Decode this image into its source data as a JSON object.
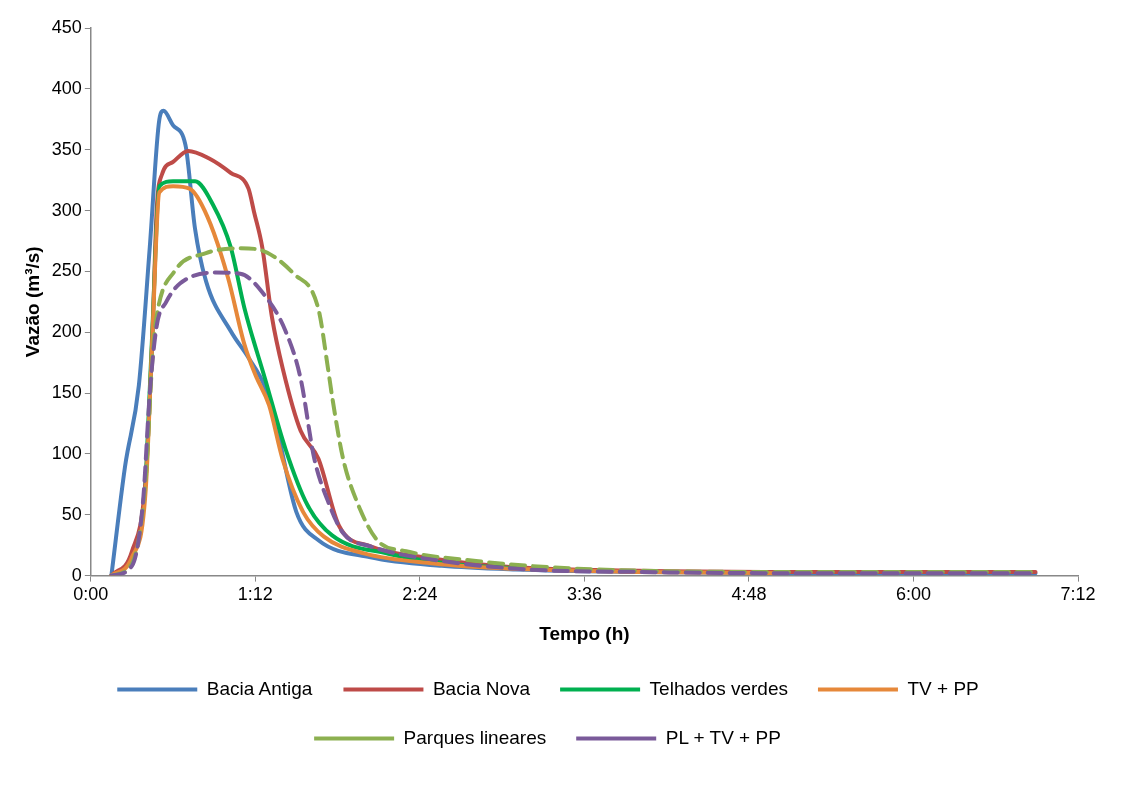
{
  "chart_data": {
    "type": "line",
    "xlabel": "Tempo (h)",
    "ylabel": "Vazão (m³/s)",
    "xlim": [
      0,
      7.2
    ],
    "xticks": [
      {
        "value": 0,
        "label": "0:00"
      },
      {
        "value": 1.2,
        "label": "1:12"
      },
      {
        "value": 2.4,
        "label": "2:24"
      },
      {
        "value": 3.6,
        "label": "3:36"
      },
      {
        "value": 4.8,
        "label": "4:48"
      },
      {
        "value": 6,
        "label": "6:00"
      },
      {
        "value": 7.2,
        "label": "7:12"
      }
    ],
    "ylim": [
      0,
      450
    ],
    "yticks": [
      0,
      50,
      100,
      150,
      200,
      250,
      300,
      350,
      400,
      450
    ],
    "grid": false,
    "legend": "bottom",
    "marker": "none",
    "series": [
      {
        "name": "Bacia Antiga",
        "color": "#4a7ebb",
        "line_style": "solid",
        "x": [
          0.15,
          0.25,
          0.35,
          0.43,
          0.5,
          0.53,
          0.6,
          0.69,
          0.76,
          0.84,
          1.02,
          1.15,
          1.27,
          1.35,
          1.5,
          1.66,
          2.04,
          2.56,
          3.1,
          4,
          5,
          6,
          6.89
        ],
        "values": [
          0,
          90,
          156,
          270,
          375,
          382,
          370,
          354,
          285,
          242,
          201,
          179,
          155,
          124,
          52,
          29,
          15,
          8,
          5,
          3,
          2,
          2,
          2
        ]
      },
      {
        "name": "Bacia Nova",
        "color": "#be4b48",
        "line_style": "solid",
        "x": [
          0.15,
          0.3,
          0.4,
          0.45,
          0.48,
          0.52,
          0.6,
          0.71,
          0.86,
          1.02,
          1.15,
          1.19,
          1.25,
          1.32,
          1.4,
          1.53,
          1.66,
          1.81,
          2.04,
          2.43,
          3.07,
          4,
          5,
          6,
          6.89
        ],
        "values": [
          0,
          20,
          80,
          200,
          300,
          330,
          340,
          349,
          343,
          331,
          318,
          299,
          270,
          213,
          170,
          119,
          96,
          41,
          24,
          15,
          7,
          4,
          3,
          3,
          3
        ]
      },
      {
        "name": "Telhados verdes",
        "color": "#00b050",
        "line_style": "solid",
        "x": [
          0.4,
          0.45,
          0.5,
          0.6,
          0.76,
          0.89,
          1.02,
          1.12,
          1.27,
          1.42,
          1.58,
          1.76,
          2.17,
          2.6,
          3.1
        ],
        "values": [
          75,
          205,
          320,
          324,
          324,
          305,
          270,
          220,
          162,
          104,
          58,
          33,
          18,
          10,
          6
        ]
      },
      {
        "name": "TV + PP",
        "color": "#e6883a",
        "line_style": "solid",
        "x": [
          0.15,
          0.3,
          0.4,
          0.45,
          0.5,
          0.6,
          0.72,
          0.85,
          1.0,
          1.12,
          1.2,
          1.3,
          1.4,
          1.55,
          1.7,
          2.0,
          2.5,
          3,
          4,
          5
        ],
        "values": [
          0,
          15,
          70,
          200,
          315,
          320,
          318,
          295,
          245,
          190,
          165,
          140,
          95,
          52,
          32,
          18,
          10,
          6,
          3,
          2
        ]
      },
      {
        "name": "Parques lineares",
        "color": "#8cb050",
        "line_style": "dashed",
        "x": [
          0.15,
          0.3,
          0.4,
          0.45,
          0.48,
          0.61,
          0.84,
          1.09,
          1.22,
          1.48,
          1.66,
          1.73,
          1.76,
          1.84,
          1.94,
          2.09,
          2.3,
          2.81,
          3.33,
          4,
          5,
          6,
          6.89
        ],
        "values": [
          0,
          10,
          80,
          180,
          213,
          250,
          265,
          269,
          268,
          248,
          219,
          170,
          147,
          96,
          61,
          29,
          20,
          12,
          7,
          4,
          3,
          3,
          3
        ]
      },
      {
        "name": "PL + TV + PP",
        "color": "#7a5a9a",
        "line_style": "dashed",
        "x": [
          0.15,
          0.3,
          0.38,
          0.43,
          0.48,
          0.55,
          0.65,
          0.91,
          1.09,
          1.27,
          1.42,
          1.53,
          1.63,
          1.73,
          1.84,
          2.04,
          2.56,
          3.2,
          4,
          5,
          6,
          6.89
        ],
        "values": [
          0,
          8,
          60,
          150,
          205,
          225,
          240,
          249,
          248,
          230,
          201,
          162,
          96,
          61,
          35,
          24,
          12,
          5,
          3,
          2,
          2,
          2
        ]
      }
    ]
  }
}
